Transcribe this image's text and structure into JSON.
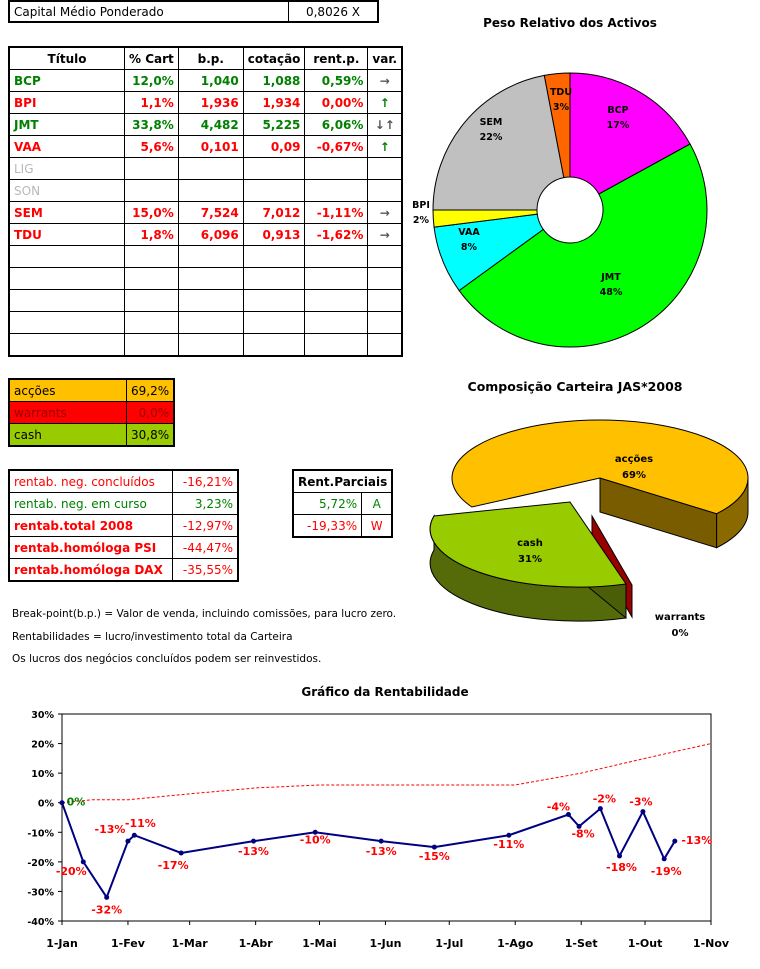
{
  "capital": {
    "label": "Capital Médio Ponderado",
    "value": "0,8026 X"
  },
  "table": {
    "headers": [
      "Título",
      "% Cart",
      "b.p.",
      "cotação",
      "rent.p.",
      "var."
    ],
    "rows": [
      {
        "titulo": "BCP",
        "cart": "12,0%",
        "bp": "1,040",
        "cot": "1,088",
        "rent": "0,59%",
        "var": "→",
        "color": "#008000"
      },
      {
        "titulo": "BPI",
        "cart": "1,1%",
        "bp": "1,936",
        "cot": "1,934",
        "rent": "0,00%",
        "var": "↑",
        "color": "#ff0000"
      },
      {
        "titulo": "JMT",
        "cart": "33,8%",
        "bp": "4,482",
        "cot": "5,225",
        "rent": "6,06%",
        "var": "↓↑",
        "color": "#008000"
      },
      {
        "titulo": "VAA",
        "cart": "5,6%",
        "bp": "0,101",
        "cot": "0,09",
        "rent": "-0,67%",
        "var": "↑",
        "color": "#ff0000"
      },
      {
        "titulo": "LIG",
        "cart": "",
        "bp": "",
        "cot": "",
        "rent": "",
        "var": "",
        "color": "#b8b8b8"
      },
      {
        "titulo": "SON",
        "cart": "",
        "bp": "",
        "cot": "",
        "rent": "",
        "var": "",
        "color": "#b8b8b8"
      },
      {
        "titulo": "SEM",
        "cart": "15,0%",
        "bp": "7,524",
        "cot": "7,012",
        "rent": "-1,11%",
        "var": "→",
        "color": "#ff0000"
      },
      {
        "titulo": "TDU",
        "cart": "1,8%",
        "bp": "6,096",
        "cot": "0,913",
        "rent": "-1,62%",
        "var": "→",
        "color": "#ff0000"
      },
      {
        "titulo": "",
        "cart": "",
        "bp": "",
        "cot": "",
        "rent": "",
        "var": "",
        "color": "#000000"
      },
      {
        "titulo": "",
        "cart": "",
        "bp": "",
        "cot": "",
        "rent": "",
        "var": "",
        "color": "#000000"
      },
      {
        "titulo": "",
        "cart": "",
        "bp": "",
        "cot": "",
        "rent": "",
        "var": "",
        "color": "#000000"
      },
      {
        "titulo": "",
        "cart": "",
        "bp": "",
        "cot": "",
        "rent": "",
        "var": "",
        "color": "#000000"
      },
      {
        "titulo": "",
        "cart": "",
        "bp": "",
        "cot": "",
        "rent": "",
        "var": "",
        "color": "#000000"
      }
    ]
  },
  "composition_table": [
    {
      "label": "acções",
      "value": "69,2%",
      "bg": "#ffc000",
      "fg": "#000000"
    },
    {
      "label": "warrants",
      "value": "0,0%",
      "bg": "#ff0000",
      "fg": "#990000"
    },
    {
      "label": "cash",
      "value": "30,8%",
      "bg": "#99cc00",
      "fg": "#000000"
    }
  ],
  "rentab": [
    {
      "label": "rentab. neg. concluídos",
      "value": "-16,21%",
      "color": "#ff0000",
      "bold": false
    },
    {
      "label": "rentab. neg. em curso",
      "value": "3,23%",
      "color": "#008000",
      "bold": false
    },
    {
      "label": "rentab.total 2008",
      "value": "-12,97%",
      "color": "#ff0000",
      "bold": true
    },
    {
      "label": "rentab.homóloga PSI",
      "value": "-44,47%",
      "color": "#ff0000",
      "bold": true
    },
    {
      "label": "rentab.homóloga DAX",
      "value": "-35,55%",
      "color": "#ff0000",
      "bold": true
    }
  ],
  "parciais": {
    "header": "Rent.Parciais",
    "rows": [
      {
        "value": "5,72%",
        "tag": "A",
        "color": "#008000"
      },
      {
        "value": "-19,33%",
        "tag": "W",
        "color": "#ff0000"
      }
    ]
  },
  "notes": [
    "Break-point(b.p.) = Valor de venda, incluindo comissões, para lucro zero.",
    "Rentabilidades = lucro/investimento total da Carteira",
    "Os lucros dos negócios concluídos podem ser reinvestidos."
  ],
  "chart_data": [
    {
      "type": "pie",
      "title": "Peso Relativo dos Activos",
      "labels": [
        "BCP",
        "JMT",
        "VAA",
        "BPI",
        "SEM",
        "TDU"
      ],
      "values": [
        17,
        48,
        8,
        2,
        22,
        3
      ],
      "value_labels": [
        "17%",
        "48%",
        "8%",
        "2%",
        "22%",
        "3%"
      ],
      "colors": [
        "#ff00ff",
        "#00ff00",
        "#00ffff",
        "#ffff00",
        "#c0c0c0",
        "#ff6600"
      ],
      "donut": true
    },
    {
      "type": "pie",
      "title": "Composição Carteira JAS*2008",
      "labels": [
        "acções",
        "warrants",
        "cash"
      ],
      "values": [
        69,
        0,
        31
      ],
      "value_labels": [
        "69%",
        "0%",
        "31%"
      ],
      "colors": [
        "#ffc000",
        "#990000",
        "#99cc00"
      ],
      "three_d": true
    },
    {
      "type": "line",
      "title": "Gráfico da Rentabilidade",
      "x_ticks": [
        "1-Jan",
        "1-Fev",
        "1-Mar",
        "1-Abr",
        "1-Mai",
        "1-Jun",
        "1-Jul",
        "1-Ago",
        "1-Set",
        "1-Out",
        "1-Nov"
      ],
      "ylim": [
        -40,
        30
      ],
      "y_ticks": [
        "-40%",
        "-30%",
        "-20%",
        "-10%",
        "0%",
        "10%",
        "20%",
        "30%"
      ],
      "grid": false,
      "series": [
        {
          "color": "#000080",
          "points": [
            {
              "x": "2008-01-01",
              "y": 0,
              "label": "0%"
            },
            {
              "x": "2008-01-11",
              "y": -20,
              "label": "-20%"
            },
            {
              "x": "2008-01-22",
              "y": -32,
              "label": "-32%"
            },
            {
              "x": "2008-02-01",
              "y": -13,
              "label": "-13%"
            },
            {
              "x": "2008-02-04",
              "y": -11,
              "label": "-11%"
            },
            {
              "x": "2008-02-26",
              "y": -17,
              "label": "-17%"
            },
            {
              "x": "2008-03-31",
              "y": -13,
              "label": "-13%"
            },
            {
              "x": "2008-04-29",
              "y": -10,
              "label": "-10%"
            },
            {
              "x": "2008-05-30",
              "y": -13,
              "label": "-13%"
            },
            {
              "x": "2008-06-24",
              "y": -15,
              "label": "-15%"
            },
            {
              "x": "2008-07-29",
              "y": -11,
              "label": "-11%"
            },
            {
              "x": "2008-08-26",
              "y": -4,
              "label": "-4%"
            },
            {
              "x": "2008-08-31",
              "y": -8,
              "label": "-8%"
            },
            {
              "x": "2008-09-10",
              "y": -2,
              "label": "-2%"
            },
            {
              "x": "2008-09-19",
              "y": -18,
              "label": "-18%"
            },
            {
              "x": "2008-09-30",
              "y": -3,
              "label": "-3%"
            },
            {
              "x": "2008-10-10",
              "y": -19,
              "label": "-19%"
            },
            {
              "x": "2008-10-15",
              "y": -13,
              "label": "-13%"
            }
          ]
        },
        {
          "color": "#ff0000",
          "dashed": true,
          "points": [
            {
              "x": "2008-01-01",
              "y": 0
            },
            {
              "x": "2008-01-15",
              "y": 1
            },
            {
              "x": "2008-02-01",
              "y": 1
            },
            {
              "x": "2008-03-01",
              "y": 3
            },
            {
              "x": "2008-04-01",
              "y": 5
            },
            {
              "x": "2008-05-01",
              "y": 6
            },
            {
              "x": "2008-06-01",
              "y": 6
            },
            {
              "x": "2008-07-01",
              "y": 6
            },
            {
              "x": "2008-08-01",
              "y": 6
            },
            {
              "x": "2008-09-01",
              "y": 10
            },
            {
              "x": "2008-10-01",
              "y": 15
            },
            {
              "x": "2008-11-01",
              "y": 20
            }
          ]
        }
      ]
    }
  ]
}
